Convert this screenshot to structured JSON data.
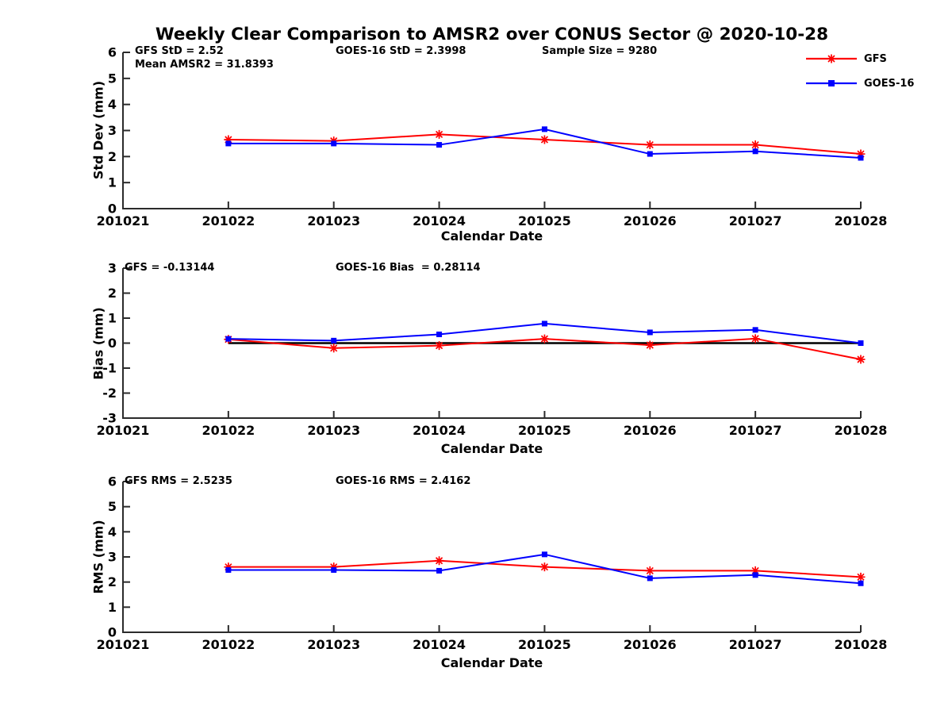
{
  "title": "Weekly Clear Comparison to AMSR2 over CONUS Sector @ 2020-10-28",
  "colors": {
    "gfs": "#ff0000",
    "goes16": "#0000ff",
    "axis": "#2b2b2b",
    "zero_line": "#000000",
    "text": "#000000"
  },
  "legend": {
    "items": [
      {
        "label": "GFS",
        "color": "#ff0000",
        "marker": "asterisk"
      },
      {
        "label": "GOES-16",
        "color": "#0000ff",
        "marker": "square"
      }
    ]
  },
  "chart_data": [
    {
      "type": "line",
      "name": "std-dev-panel",
      "ylabel": "Std Dev (mm)",
      "xlabel": "Calendar Date",
      "ylim": [
        0,
        6
      ],
      "yticks": [
        0,
        1,
        2,
        3,
        4,
        5,
        6
      ],
      "categories": [
        "201021",
        "201022",
        "201023",
        "201024",
        "201025",
        "201026",
        "201027",
        "201028"
      ],
      "grid": false,
      "zero_line": false,
      "annotations": {
        "a1": "GFS StD = 2.52",
        "a2": "GOES-16 StD = 2.3998",
        "a3": "Sample Size = 9280",
        "a4": "Mean AMSR2 = 31.8393"
      },
      "series": [
        {
          "name": "GFS",
          "color": "#ff0000",
          "marker": "asterisk",
          "categories": [
            "201022",
            "201023",
            "201024",
            "201025",
            "201026",
            "201027",
            "201028"
          ],
          "values": [
            2.65,
            2.6,
            2.85,
            2.65,
            2.45,
            2.45,
            2.1
          ]
        },
        {
          "name": "GOES-16",
          "color": "#0000ff",
          "marker": "square",
          "categories": [
            "201022",
            "201023",
            "201024",
            "201025",
            "201026",
            "201027",
            "201028"
          ],
          "values": [
            2.5,
            2.5,
            2.45,
            3.05,
            2.1,
            2.2,
            1.95
          ]
        }
      ]
    },
    {
      "type": "line",
      "name": "bias-panel",
      "ylabel": "Bias (mm)",
      "xlabel": "Calendar Date",
      "ylim": [
        -3,
        3
      ],
      "yticks": [
        -3,
        -2,
        -1,
        0,
        1,
        2,
        3
      ],
      "categories": [
        "201021",
        "201022",
        "201023",
        "201024",
        "201025",
        "201026",
        "201027",
        "201028"
      ],
      "grid": false,
      "zero_line": true,
      "annotations": {
        "a1": "GFS = -0.13144",
        "a2": "GOES-16 Bias  = 0.28114"
      },
      "series": [
        {
          "name": "GFS",
          "color": "#ff0000",
          "marker": "asterisk",
          "categories": [
            "201022",
            "201023",
            "201024",
            "201025",
            "201026",
            "201027",
            "201028"
          ],
          "values": [
            0.15,
            -0.2,
            -0.1,
            0.17,
            -0.08,
            0.18,
            -0.65
          ]
        },
        {
          "name": "GOES-16",
          "color": "#0000ff",
          "marker": "square",
          "categories": [
            "201022",
            "201023",
            "201024",
            "201025",
            "201026",
            "201027",
            "201028"
          ],
          "values": [
            0.17,
            0.1,
            0.35,
            0.78,
            0.43,
            0.53,
            0.0
          ]
        }
      ]
    },
    {
      "type": "line",
      "name": "rms-panel",
      "ylabel": "RMS (mm)",
      "xlabel": "Calendar Date",
      "ylim": [
        0,
        6
      ],
      "yticks": [
        0,
        1,
        2,
        3,
        4,
        5,
        6
      ],
      "categories": [
        "201021",
        "201022",
        "201023",
        "201024",
        "201025",
        "201026",
        "201027",
        "201028"
      ],
      "grid": false,
      "zero_line": false,
      "annotations": {
        "a1": "GFS RMS = 2.5235",
        "a2": "GOES-16 RMS = 2.4162"
      },
      "series": [
        {
          "name": "GFS",
          "color": "#ff0000",
          "marker": "asterisk",
          "categories": [
            "201022",
            "201023",
            "201024",
            "201025",
            "201026",
            "201027",
            "201028"
          ],
          "values": [
            2.6,
            2.6,
            2.85,
            2.6,
            2.45,
            2.45,
            2.2
          ]
        },
        {
          "name": "GOES-16",
          "color": "#0000ff",
          "marker": "square",
          "categories": [
            "201022",
            "201023",
            "201024",
            "201025",
            "201026",
            "201027",
            "201028"
          ],
          "values": [
            2.48,
            2.48,
            2.45,
            3.1,
            2.15,
            2.28,
            1.95
          ]
        }
      ]
    }
  ]
}
